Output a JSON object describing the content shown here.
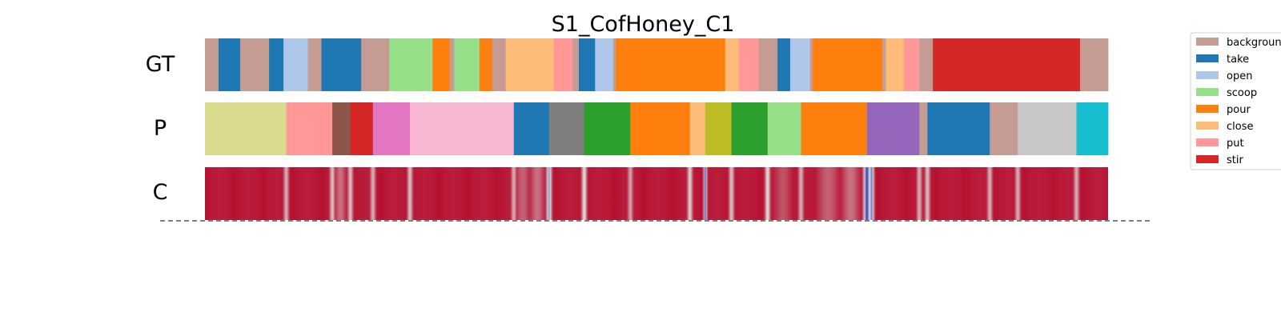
{
  "chart_data": {
    "type": "segmentation-timeline",
    "title": "S1_CofHoney_C1",
    "legend": {
      "placement": "right",
      "entries": [
        {
          "label": "backgroun",
          "color": "#c49c94"
        },
        {
          "label": "take",
          "color": "#1f77b4"
        },
        {
          "label": "open",
          "color": "#aec7e8"
        },
        {
          "label": "scoop",
          "color": "#98df8a"
        },
        {
          "label": "pour",
          "color": "#ff7f0e"
        },
        {
          "label": "close",
          "color": "#ffbb78"
        },
        {
          "label": "put",
          "color": "#ff9896"
        },
        {
          "label": "stir",
          "color": "#d62728"
        }
      ]
    },
    "rows": [
      {
        "label": "GT",
        "segments": [
          {
            "start": 0.0,
            "end": 0.015,
            "color": "#c49c94"
          },
          {
            "start": 0.015,
            "end": 0.039,
            "color": "#1f77b4"
          },
          {
            "start": 0.039,
            "end": 0.071,
            "color": "#c49c94"
          },
          {
            "start": 0.071,
            "end": 0.087,
            "color": "#1f77b4"
          },
          {
            "start": 0.087,
            "end": 0.114,
            "color": "#aec7e8"
          },
          {
            "start": 0.114,
            "end": 0.129,
            "color": "#c49c94"
          },
          {
            "start": 0.129,
            "end": 0.173,
            "color": "#1f77b4"
          },
          {
            "start": 0.173,
            "end": 0.204,
            "color": "#c49c94"
          },
          {
            "start": 0.204,
            "end": 0.252,
            "color": "#98df8a"
          },
          {
            "start": 0.252,
            "end": 0.271,
            "color": "#ff7f0e"
          },
          {
            "start": 0.271,
            "end": 0.276,
            "color": "#c49c94"
          },
          {
            "start": 0.276,
            "end": 0.304,
            "color": "#98df8a"
          },
          {
            "start": 0.304,
            "end": 0.318,
            "color": "#ff7f0e"
          },
          {
            "start": 0.318,
            "end": 0.333,
            "color": "#c49c94"
          },
          {
            "start": 0.333,
            "end": 0.386,
            "color": "#ffbb78"
          },
          {
            "start": 0.386,
            "end": 0.407,
            "color": "#ff9896"
          },
          {
            "start": 0.407,
            "end": 0.414,
            "color": "#c49c94"
          },
          {
            "start": 0.414,
            "end": 0.432,
            "color": "#1f77b4"
          },
          {
            "start": 0.432,
            "end": 0.452,
            "color": "#aec7e8"
          },
          {
            "start": 0.452,
            "end": 0.455,
            "color": "#c49c94"
          },
          {
            "start": 0.455,
            "end": 0.576,
            "color": "#ff7f0e"
          },
          {
            "start": 0.576,
            "end": 0.591,
            "color": "#ffbb78"
          },
          {
            "start": 0.591,
            "end": 0.613,
            "color": "#ff9896"
          },
          {
            "start": 0.613,
            "end": 0.634,
            "color": "#c49c94"
          },
          {
            "start": 0.634,
            "end": 0.648,
            "color": "#1f77b4"
          },
          {
            "start": 0.648,
            "end": 0.67,
            "color": "#aec7e8"
          },
          {
            "start": 0.67,
            "end": 0.673,
            "color": "#c49c94"
          },
          {
            "start": 0.673,
            "end": 0.75,
            "color": "#ff7f0e"
          },
          {
            "start": 0.75,
            "end": 0.754,
            "color": "#c49c94"
          },
          {
            "start": 0.754,
            "end": 0.774,
            "color": "#ffbb78"
          },
          {
            "start": 0.774,
            "end": 0.791,
            "color": "#ff9896"
          },
          {
            "start": 0.791,
            "end": 0.806,
            "color": "#c49c94"
          },
          {
            "start": 0.806,
            "end": 0.969,
            "color": "#d62728"
          },
          {
            "start": 0.969,
            "end": 1.0,
            "color": "#c49c94"
          }
        ]
      },
      {
        "label": "P",
        "segments": [
          {
            "start": 0.0,
            "end": 0.09,
            "color": "#dbdb8d"
          },
          {
            "start": 0.09,
            "end": 0.141,
            "color": "#ff9896"
          },
          {
            "start": 0.141,
            "end": 0.161,
            "color": "#8c564b"
          },
          {
            "start": 0.161,
            "end": 0.186,
            "color": "#d62728"
          },
          {
            "start": 0.186,
            "end": 0.227,
            "color": "#e377c2"
          },
          {
            "start": 0.227,
            "end": 0.342,
            "color": "#f7b6d2"
          },
          {
            "start": 0.342,
            "end": 0.381,
            "color": "#1f77b4"
          },
          {
            "start": 0.381,
            "end": 0.42,
            "color": "#7f7f7f"
          },
          {
            "start": 0.42,
            "end": 0.471,
            "color": "#2ca02c"
          },
          {
            "start": 0.471,
            "end": 0.537,
            "color": "#ff7f0e"
          },
          {
            "start": 0.537,
            "end": 0.554,
            "color": "#ffbb78"
          },
          {
            "start": 0.554,
            "end": 0.583,
            "color": "#bcbd22"
          },
          {
            "start": 0.583,
            "end": 0.623,
            "color": "#2ca02c"
          },
          {
            "start": 0.623,
            "end": 0.66,
            "color": "#98df8a"
          },
          {
            "start": 0.66,
            "end": 0.733,
            "color": "#ff7f0e"
          },
          {
            "start": 0.733,
            "end": 0.791,
            "color": "#9467bd"
          },
          {
            "start": 0.791,
            "end": 0.8,
            "color": "#c49c94"
          },
          {
            "start": 0.8,
            "end": 0.869,
            "color": "#1f77b4"
          },
          {
            "start": 0.869,
            "end": 0.9,
            "color": "#c49c94"
          },
          {
            "start": 0.9,
            "end": 0.965,
            "color": "#c7c7c7"
          },
          {
            "start": 0.965,
            "end": 1.0,
            "color": "#17becf"
          }
        ]
      },
      {
        "label": "C",
        "base_color": "#b40426",
        "low_color": "#3b4cc0",
        "mid_color": "#dddddd",
        "dips": [
          {
            "pos": 0.09,
            "depth": 0.55,
            "width": 0.003
          },
          {
            "pos": 0.141,
            "depth": 0.6,
            "width": 0.003
          },
          {
            "pos": 0.15,
            "depth": 0.35,
            "width": 0.006
          },
          {
            "pos": 0.161,
            "depth": 0.6,
            "width": 0.003
          },
          {
            "pos": 0.186,
            "depth": 0.55,
            "width": 0.003
          },
          {
            "pos": 0.227,
            "depth": 0.6,
            "width": 0.003
          },
          {
            "pos": 0.342,
            "depth": 0.55,
            "width": 0.003
          },
          {
            "pos": 0.352,
            "depth": 0.3,
            "width": 0.008
          },
          {
            "pos": 0.368,
            "depth": 0.35,
            "width": 0.008
          },
          {
            "pos": 0.381,
            "depth": 0.85,
            "width": 0.003
          },
          {
            "pos": 0.42,
            "depth": 0.7,
            "width": 0.003
          },
          {
            "pos": 0.471,
            "depth": 0.5,
            "width": 0.003
          },
          {
            "pos": 0.537,
            "depth": 0.65,
            "width": 0.003
          },
          {
            "pos": 0.554,
            "depth": 0.95,
            "width": 0.002
          },
          {
            "pos": 0.583,
            "depth": 0.6,
            "width": 0.003
          },
          {
            "pos": 0.623,
            "depth": 0.7,
            "width": 0.003
          },
          {
            "pos": 0.64,
            "depth": 0.25,
            "width": 0.01
          },
          {
            "pos": 0.66,
            "depth": 0.55,
            "width": 0.003
          },
          {
            "pos": 0.69,
            "depth": 0.3,
            "width": 0.012
          },
          {
            "pos": 0.715,
            "depth": 0.35,
            "width": 0.01
          },
          {
            "pos": 0.733,
            "depth": 1.0,
            "width": 0.004
          },
          {
            "pos": 0.738,
            "depth": 0.9,
            "width": 0.003
          },
          {
            "pos": 0.791,
            "depth": 0.55,
            "width": 0.003
          },
          {
            "pos": 0.8,
            "depth": 0.6,
            "width": 0.003
          },
          {
            "pos": 0.869,
            "depth": 0.55,
            "width": 0.003
          },
          {
            "pos": 0.9,
            "depth": 0.55,
            "width": 0.003
          },
          {
            "pos": 0.965,
            "depth": 0.55,
            "width": 0.003
          }
        ]
      }
    ]
  }
}
